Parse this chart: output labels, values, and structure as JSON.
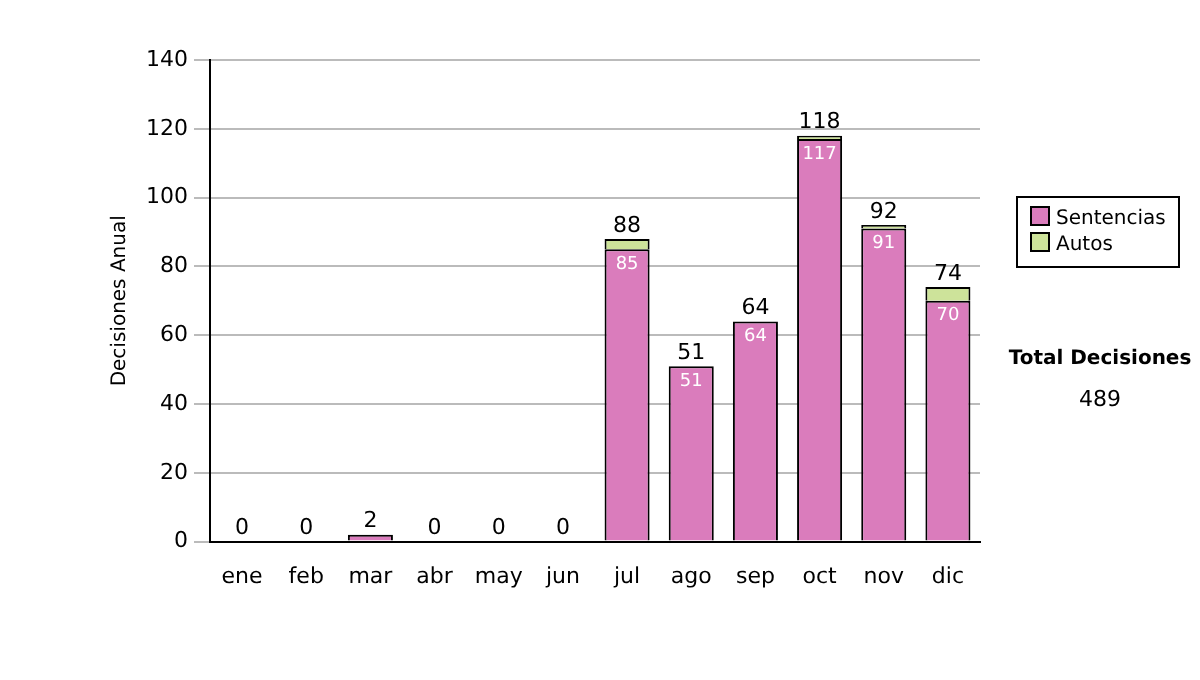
{
  "chart_data": {
    "type": "bar",
    "ylabel": "Decisiones Anual",
    "stacked": true,
    "categories": [
      "ene",
      "feb",
      "mar",
      "abr",
      "may",
      "jun",
      "jul",
      "ago",
      "sep",
      "oct",
      "nov",
      "dic"
    ],
    "series": [
      {
        "name": "Sentencias",
        "color": "#da7cbc",
        "values": [
          0,
          0,
          2,
          0,
          0,
          0,
          85,
          51,
          64,
          117,
          91,
          70
        ],
        "value_labels": [
          null,
          null,
          null,
          null,
          null,
          null,
          "85",
          "51",
          "64",
          "117",
          "91",
          "70"
        ]
      },
      {
        "name": "Autos",
        "color": "#cde39a",
        "values": [
          0,
          0,
          0,
          0,
          0,
          0,
          3,
          0,
          0,
          1,
          1,
          4
        ]
      }
    ],
    "totals": [
      "0",
      "0",
      "2",
      "0",
      "0",
      "0",
      "88",
      "51",
      "64",
      "118",
      "92",
      "74"
    ],
    "ylim": [
      0,
      140
    ],
    "yticks": [
      0,
      20,
      40,
      60,
      80,
      100,
      120,
      140
    ],
    "grid": "y",
    "legend": "right",
    "annotations": [
      "Total Decisiones",
      "489"
    ]
  }
}
